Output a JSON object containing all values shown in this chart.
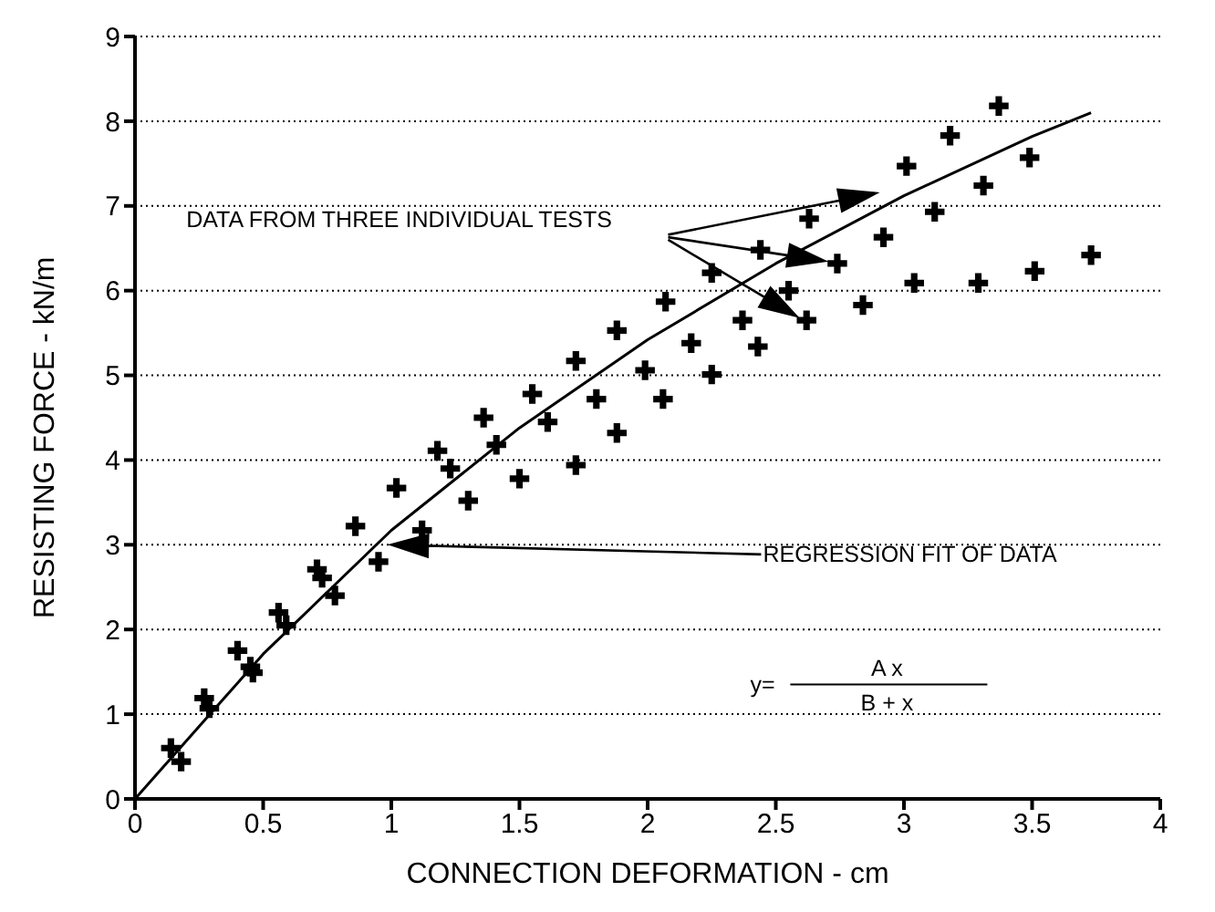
{
  "chart_data": {
    "type": "scatter",
    "xlabel": "CONNECTION DEFORMATION - cm",
    "ylabel": "RESISTING FORCE - kN/m",
    "xlim": [
      0,
      4
    ],
    "xticks": [
      0,
      0.5,
      1,
      1.5,
      2,
      2.5,
      3,
      3.5,
      4
    ],
    "ylim": [
      0,
      9
    ],
    "yticks": [
      0,
      1,
      2,
      3,
      4,
      5,
      6,
      7,
      8,
      9
    ],
    "grid": "y",
    "annotations": [
      "DATA FROM THREE INDIVIDUAL TESTS",
      "REGRESSION FIT OF DATA",
      "y=",
      "A x",
      "B + x"
    ],
    "series": [
      {
        "color": "#000000",
        "marker": "cross",
        "x": [
          0.14,
          0.18,
          0.27,
          0.29,
          0.4,
          0.45,
          0.46,
          0.56,
          0.59,
          0.71,
          0.73,
          0.78,
          0.86,
          0.95,
          1.02,
          1.12,
          1.18,
          1.23,
          1.3,
          1.36,
          1.41,
          1.5,
          1.55,
          1.61,
          1.72,
          1.72,
          1.8,
          1.88,
          1.88,
          1.99,
          2.06,
          2.07,
          2.17,
          2.25,
          2.25,
          2.37,
          2.43,
          2.44,
          2.55,
          2.62,
          2.63,
          2.74,
          2.84,
          2.92,
          3.01,
          3.04,
          3.12,
          3.18,
          3.29,
          3.31,
          3.37,
          3.49,
          3.51,
          3.73
        ],
        "values": [
          0.6,
          0.44,
          1.19,
          1.07,
          1.75,
          1.56,
          1.49,
          2.2,
          2.05,
          2.71,
          2.61,
          2.4,
          3.22,
          2.8,
          3.67,
          3.17,
          4.11,
          3.9,
          3.52,
          4.5,
          4.18,
          3.78,
          4.78,
          4.45,
          5.17,
          3.94,
          4.72,
          5.53,
          4.32,
          5.06,
          4.72,
          5.87,
          5.38,
          6.21,
          5.01,
          5.65,
          5.34,
          6.48,
          6.0,
          5.65,
          6.85,
          6.32,
          5.83,
          6.63,
          7.47,
          6.09,
          6.93,
          7.83,
          6.09,
          7.24,
          8.18,
          7.57,
          6.23,
          6.42
        ]
      },
      {
        "type": "line",
        "color": "#000000",
        "marker": "none",
        "line_style": "solid",
        "x": [
          0,
          0.5,
          1,
          1.5,
          2,
          2.5,
          3,
          3.5,
          3.73
        ],
        "values": [
          0,
          1.71,
          3.17,
          4.38,
          5.42,
          6.32,
          7.12,
          7.82,
          8.1
        ]
      }
    ]
  }
}
